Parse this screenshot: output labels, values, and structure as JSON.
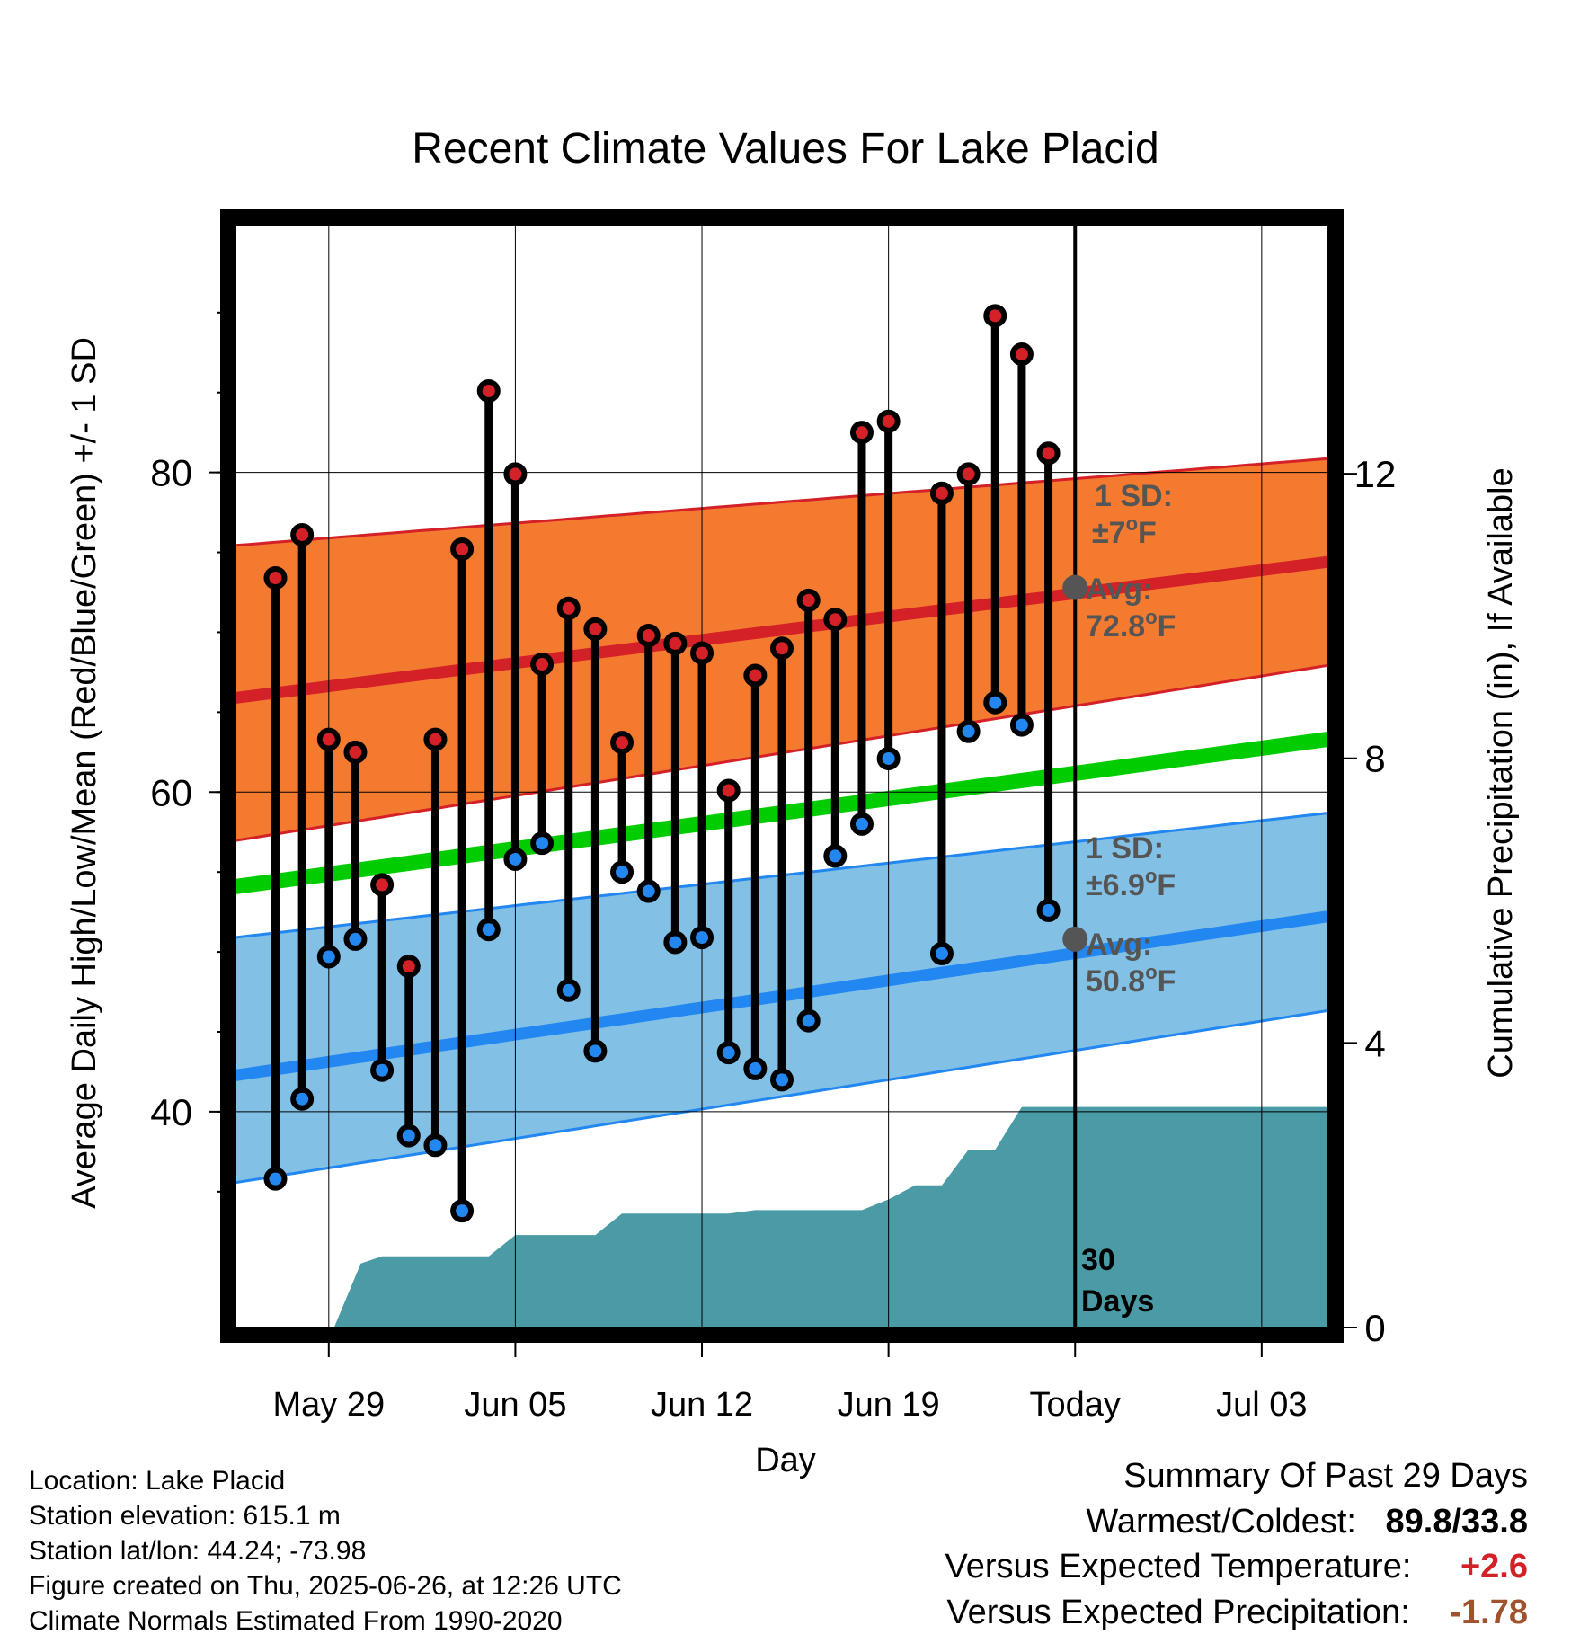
{
  "chart_data": {
    "type": "line",
    "title": "Recent Climate Values For Lake Placid",
    "xlabel": "Day",
    "ylabel": "Average Daily High/Low/Mean (Red/Blue/Green) +/- 1 SD",
    "y2label": "Cumulative Precipitation (in), If Available",
    "x_tick_labels": [
      "May 29",
      "Jun 05",
      "Jun 12",
      "Jun 19",
      "Today",
      "Jul 03"
    ],
    "x_tick_days": [
      3,
      10,
      17,
      24,
      31,
      38
    ],
    "x_range_days": [
      -0.5,
      40.5
    ],
    "y_ticks": [
      40,
      60,
      80
    ],
    "y_range": [
      26.5,
      95.5
    ],
    "y2_ticks": [
      0,
      4,
      8,
      12
    ],
    "y2_range": [
      0,
      15.5
    ],
    "grid": true,
    "today_day": 31,
    "today_label": "30 Days",
    "days": [
      1,
      2,
      3,
      4,
      5,
      6,
      7,
      8,
      9,
      10,
      11,
      12,
      13,
      14,
      15,
      16,
      17,
      18,
      19,
      20,
      21,
      22,
      23,
      24,
      25,
      26,
      27,
      28,
      29,
      30
    ],
    "daily_high": [
      73.4,
      76.1,
      63.3,
      62.5,
      54.2,
      49.1,
      63.3,
      75.2,
      85.1,
      79.9,
      68.0,
      71.5,
      70.2,
      63.1,
      69.8,
      69.3,
      68.7,
      60.1,
      67.3,
      69.0,
      72.0,
      70.8,
      82.5,
      83.2,
      null,
      78.7,
      79.9,
      89.8,
      87.4,
      81.2
    ],
    "daily_low": [
      35.8,
      40.8,
      49.7,
      50.8,
      42.6,
      38.5,
      37.9,
      33.8,
      51.4,
      55.8,
      56.8,
      47.6,
      43.8,
      55.0,
      53.8,
      50.6,
      50.9,
      43.7,
      42.7,
      42.0,
      45.7,
      56.0,
      58.0,
      62.1,
      null,
      49.9,
      63.8,
      65.6,
      64.2,
      52.6
    ],
    "series": [
      {
        "name": "Avg High",
        "color": "#d42027",
        "days": [
          0,
          40
        ],
        "values": [
          66.0,
          74.3
        ]
      },
      {
        "name": "Avg Low",
        "color": "#2287f0",
        "days": [
          0,
          40
        ],
        "values": [
          42.4,
          52.1
        ]
      },
      {
        "name": "Avg Mean",
        "color": "#00cc00",
        "days": [
          0,
          40
        ],
        "values": [
          54.2,
          63.2
        ]
      }
    ],
    "high_band": {
      "color": "#f47a30",
      "edge": "#d42027",
      "days": [
        0,
        40
      ],
      "upper": [
        75.5,
        80.8
      ],
      "lower": [
        57.1,
        67.8
      ]
    },
    "low_band": {
      "color": "#82c0e6",
      "edge": "#2287f0",
      "days": [
        0,
        40
      ],
      "upper": [
        51.0,
        58.6
      ],
      "lower": [
        35.7,
        46.2
      ]
    },
    "precip": {
      "color": "#4a9ba5",
      "days": [
        3.2,
        4.2,
        5,
        6,
        7,
        8,
        9,
        10,
        11,
        12,
        13,
        14,
        15,
        16,
        17,
        18,
        19,
        20,
        21,
        22,
        23,
        24,
        25,
        26,
        27,
        28,
        29,
        30,
        31,
        40.5
      ],
      "values": [
        0,
        0.9,
        1.0,
        1.0,
        1.0,
        1.0,
        1.0,
        1.3,
        1.3,
        1.3,
        1.3,
        1.6,
        1.6,
        1.6,
        1.6,
        1.6,
        1.65,
        1.65,
        1.65,
        1.65,
        1.65,
        1.8,
        2.0,
        2.0,
        2.5,
        2.5,
        3.1,
        3.1,
        3.1,
        3.1
      ]
    },
    "annotations": {
      "high_sd_label": "1 SD:",
      "high_sd_value": "±7",
      "high_avg_label": "Avg:",
      "high_avg_value": "72.8",
      "low_sd_label": "1 SD:",
      "low_sd_value": "±6.9",
      "low_avg_label": "Avg:",
      "low_avg_value": "50.8",
      "degree_symbol": "o",
      "unit": "F",
      "high_avg_marker": 72.8,
      "low_avg_marker": 50.8,
      "text_color": "#555555"
    }
  },
  "station_info": {
    "location": "Location: Lake Placid",
    "elevation": "Station elevation: 615.1 m",
    "latlon": "Station lat/lon: 44.24; -73.98",
    "created": "Figure created on Thu, 2025-06-26, at 12:26 UTC",
    "normals": "Climate Normals Estimated From 1990-2020"
  },
  "summary": {
    "heading": "Summary Of Past 29 Days",
    "warm_cold_label": "Warmest/Coldest:",
    "warm_cold_value": "89.8/33.8",
    "temp_label": "Versus Expected Temperature:",
    "temp_value": "+2.6",
    "temp_color": "#d42027",
    "precip_label": "Versus Expected Precipitation:",
    "precip_value": "-1.78",
    "precip_color": "#a0522d"
  }
}
